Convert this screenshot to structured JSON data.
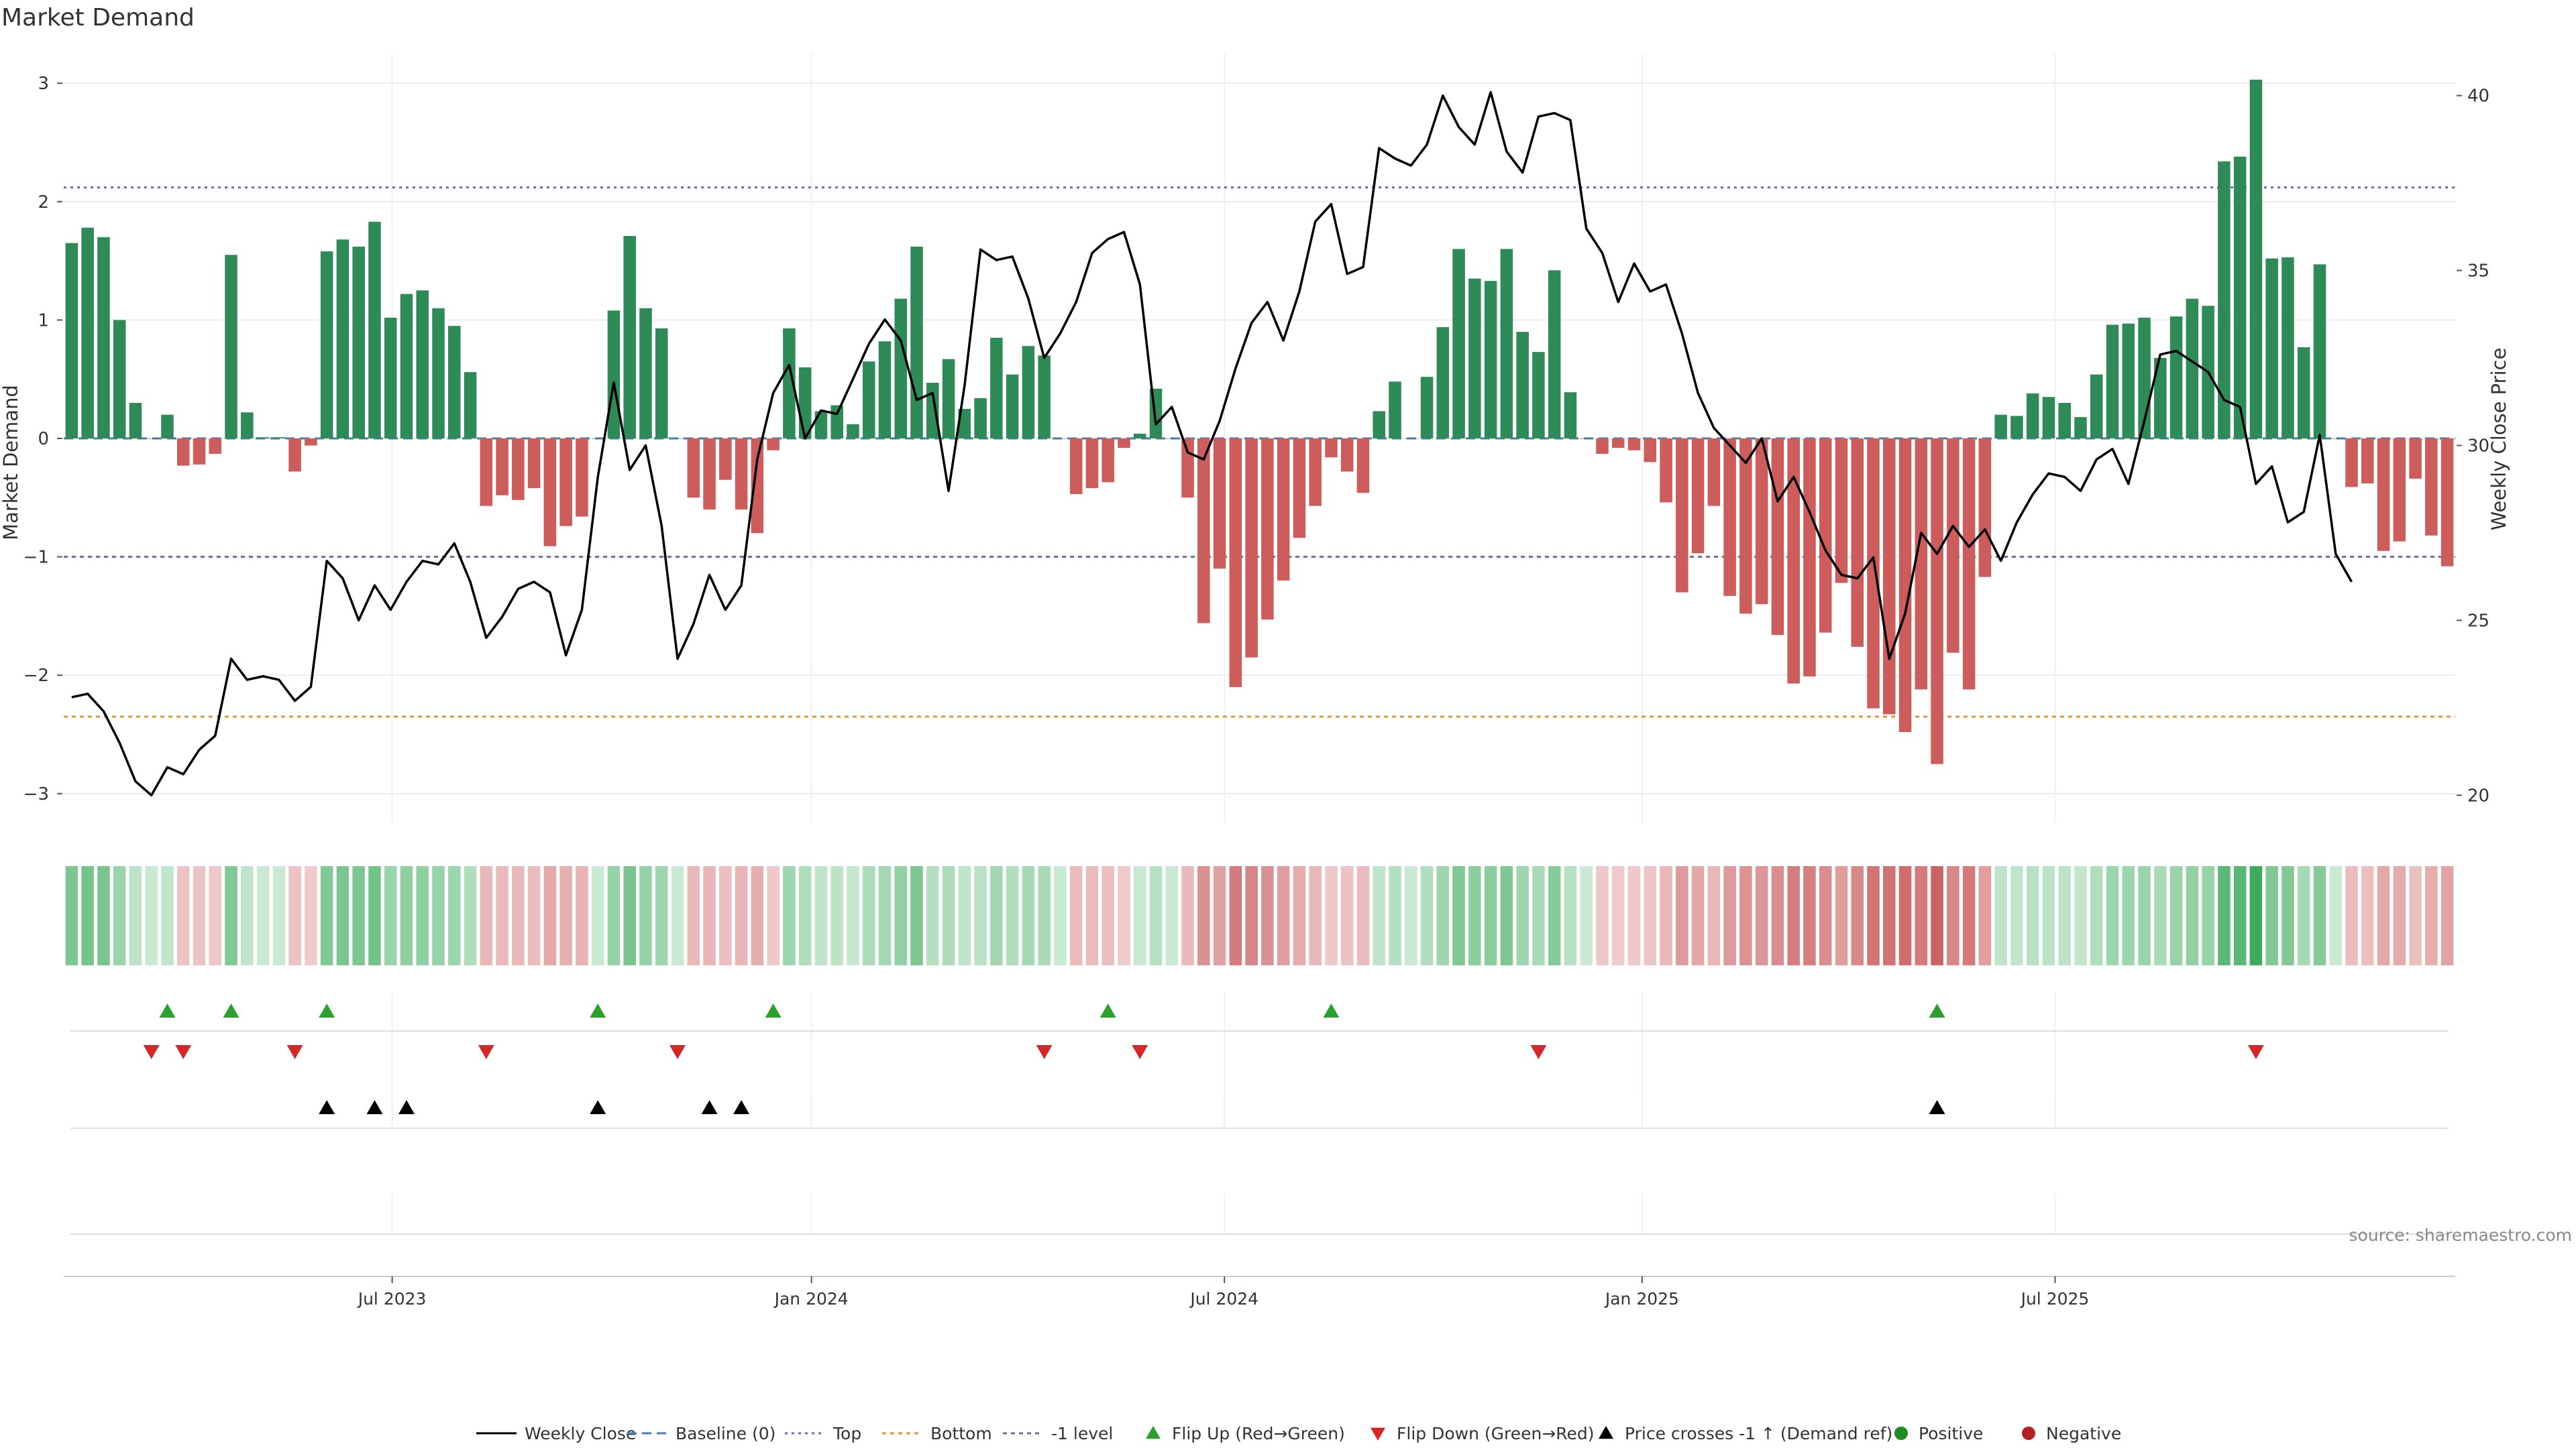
{
  "chart_data": {
    "type": "bar",
    "title": "Market Demand",
    "ylabel_left": "Market Demand",
    "ylabel_right": "Weekly Close Price",
    "ylim_left": [
      -3.25,
      3.25
    ],
    "ylim_right": [
      19.2,
      41.2
    ],
    "yticks_left": [
      3,
      2,
      1,
      0,
      -1,
      -2,
      -3
    ],
    "yticks_left_labels": [
      "3",
      "2",
      "1",
      "0",
      "−1",
      "−2",
      "−3"
    ],
    "yticks_right": [
      40,
      35,
      30,
      25,
      20
    ],
    "x_tick_labels": [
      {
        "label": "Jul 2023",
        "week": 20.6
      },
      {
        "label": "Jan 2024",
        "week": 46.9
      },
      {
        "label": "Jul 2024",
        "week": 72.8
      },
      {
        "label": "Jan 2025",
        "week": 99.0
      },
      {
        "label": "Jul 2025",
        "week": 124.9
      }
    ],
    "reference_lines": [
      {
        "name": "Top",
        "value": 2.12,
        "color": "#6a6ab8"
      },
      {
        "name": "Bottom",
        "value": -2.35,
        "color": "#e8923a"
      },
      {
        "name": "-1 level",
        "value": -1.0,
        "color": "#6e6e8e"
      },
      {
        "name": "Baseline (0)",
        "value": 0,
        "color": "#4a78b0"
      }
    ],
    "series": [
      {
        "name": "Market Demand",
        "axis": "left",
        "values": [
          1.65,
          1.78,
          1.7,
          1.0,
          0.3,
          0.0,
          0.2,
          -0.23,
          -0.22,
          -0.13,
          1.55,
          0.22,
          0.01,
          0.01,
          -0.28,
          -0.06,
          1.58,
          1.68,
          1.62,
          1.83,
          1.02,
          1.22,
          1.25,
          1.1,
          0.95,
          0.56,
          -0.57,
          -0.48,
          -0.52,
          -0.42,
          -0.91,
          -0.74,
          -0.66,
          0.0,
          1.08,
          1.71,
          1.1,
          0.93,
          0.0,
          -0.5,
          -0.6,
          -0.35,
          -0.6,
          -0.8,
          -0.1,
          0.93,
          0.6,
          0.23,
          0.28,
          0.12,
          0.65,
          0.82,
          1.18,
          1.62,
          0.47,
          0.67,
          0.25,
          0.34,
          0.85,
          0.54,
          0.78,
          0.7,
          0.0,
          -0.47,
          -0.42,
          -0.37,
          -0.08,
          0.04,
          0.42,
          0.0,
          -0.5,
          -1.56,
          -1.1,
          -2.1,
          -1.85,
          -1.53,
          -1.2,
          -0.84,
          -0.57,
          -0.16,
          -0.28,
          -0.46,
          0.23,
          0.48,
          0.0,
          0.52,
          0.94,
          1.6,
          1.35,
          1.33,
          1.6,
          0.9,
          0.73,
          1.42,
          0.39,
          0.0,
          -0.13,
          -0.08,
          -0.1,
          -0.2,
          -0.54,
          -1.3,
          -0.97,
          -0.57,
          -1.33,
          -1.48,
          -1.4,
          -1.66,
          -2.07,
          -2.01,
          -1.64,
          -1.22,
          -1.76,
          -2.28,
          -2.33,
          -2.48,
          -2.12,
          -2.75,
          -1.81,
          -2.12,
          -1.17,
          0.2,
          0.19,
          0.38,
          0.35,
          0.3,
          0.18,
          0.54,
          0.96,
          0.97,
          1.02,
          0.68,
          1.03,
          1.18,
          1.12,
          2.34,
          2.38,
          3.03,
          1.52,
          1.53,
          0.77,
          1.47,
          0.0,
          -0.41,
          -0.38,
          -0.95,
          -0.87,
          -0.34,
          -0.82,
          -1.08
        ],
        "colors": {
          "positive": "#2e8b57",
          "negative": "#cd5c5c"
        }
      },
      {
        "name": "Weekly Close",
        "axis": "right",
        "color": "#000000",
        "values": [
          22.8,
          22.9,
          22.4,
          21.5,
          20.4,
          20.0,
          20.8,
          20.6,
          21.3,
          21.7,
          23.9,
          23.3,
          23.4,
          23.3,
          22.7,
          23.1,
          26.7,
          26.2,
          25.0,
          26.0,
          25.3,
          26.1,
          26.7,
          26.6,
          27.2,
          26.1,
          24.5,
          25.1,
          25.9,
          26.1,
          25.8,
          24.0,
          25.3,
          29.1,
          31.8,
          29.3,
          30.0,
          27.7,
          23.9,
          24.9,
          26.3,
          25.3,
          26.0,
          29.6,
          31.5,
          32.3,
          30.2,
          31.0,
          30.9,
          31.9,
          32.9,
          33.6,
          33.0,
          31.3,
          31.5,
          28.7,
          31.7,
          35.6,
          35.3,
          35.4,
          34.2,
          32.5,
          33.2,
          34.1,
          35.5,
          35.9,
          36.1,
          34.6,
          30.6,
          31.1,
          29.8,
          29.6,
          30.7,
          32.2,
          33.5,
          34.1,
          33.0,
          34.4,
          36.4,
          36.9,
          34.9,
          35.1,
          38.5,
          38.2,
          38.0,
          38.6,
          40.0,
          39.1,
          38.6,
          40.1,
          38.4,
          37.8,
          39.4,
          39.5,
          39.3,
          36.2,
          35.5,
          34.1,
          35.2,
          34.4,
          34.6,
          33.2,
          31.5,
          30.5,
          30.0,
          29.5,
          30.2,
          28.4,
          29.1,
          28.1,
          27.0,
          26.3,
          26.2,
          26.8,
          23.9,
          25.2,
          27.5,
          26.9,
          27.7,
          27.1,
          27.6,
          26.7,
          27.8,
          28.6,
          29.2,
          29.1,
          28.7,
          29.6,
          29.9,
          28.9,
          30.7,
          32.6,
          32.7,
          32.4,
          32.1,
          31.3,
          31.1,
          28.9,
          29.4,
          27.8,
          28.1,
          30.3,
          26.9,
          26.1
        ]
      }
    ],
    "heat_strip": {
      "name": "Demand intensity strip",
      "source_series": "Market Demand"
    },
    "event_markers": [
      {
        "name": "Flip Up (Red→Green)",
        "color": "#2ca02c",
        "weeks": [
          6,
          10,
          16,
          33,
          44,
          65,
          79,
          117
        ]
      },
      {
        "name": "Flip Down (Green→Red)",
        "color": "#d62728",
        "weeks": [
          5,
          7,
          14,
          26,
          38,
          61,
          67,
          92,
          137
        ]
      },
      {
        "name": "Price crosses -1 ↑ (Demand ref)",
        "color": "#000000",
        "weeks": [
          16,
          19,
          21,
          33,
          40,
          42,
          117
        ]
      }
    ],
    "legend": {
      "placement": "bottom-center",
      "entries": [
        "Weekly Close",
        "Baseline (0)",
        "Top",
        "Bottom",
        "-1 level",
        "Flip Up (Red→Green)",
        "Flip Down (Green→Red)",
        "Price crosses -1 ↑ (Demand ref)",
        "Positive",
        "Negative"
      ]
    },
    "source_note": "source: sharemaestro.com"
  }
}
